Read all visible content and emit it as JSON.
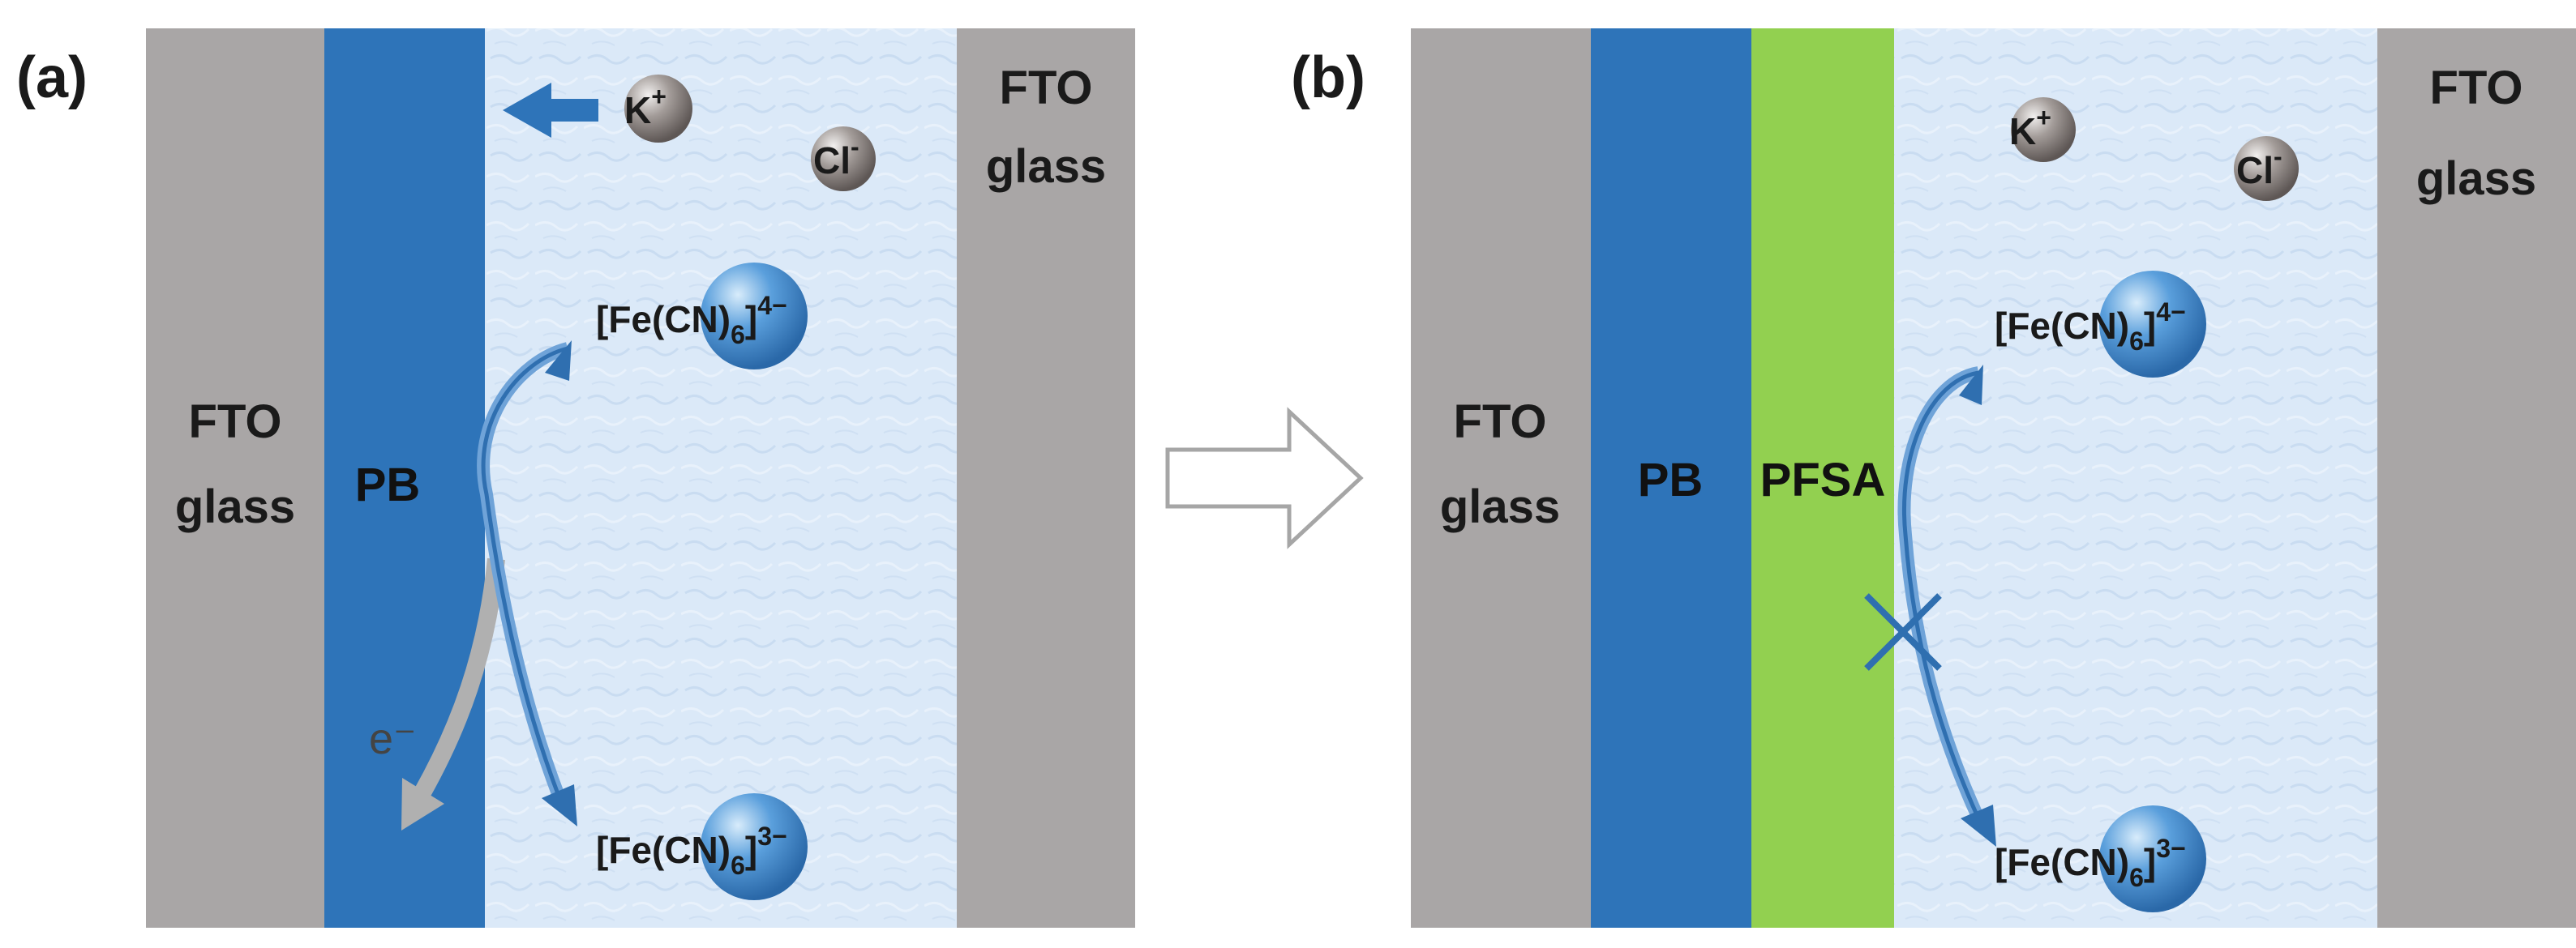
{
  "colors": {
    "fto": "#a9a6a6",
    "pb": "#2e74b9",
    "pfsa": "#92d050",
    "electrolyte": "#dbe9f8",
    "arrow": "#3a78b8",
    "electron_arrow": "#b0b0b0",
    "ion_sphere": "#8a8380",
    "complex_sphere": "#4a90d4"
  },
  "panel_a": {
    "label": "(a)",
    "fto_left": [
      "FTO",
      "glass"
    ],
    "pb": "PB",
    "fto_right": [
      "FTO",
      "glass"
    ],
    "k_ion": {
      "base": "K",
      "sup": "+"
    },
    "cl_ion": {
      "base": "Cl",
      "sup": "-"
    },
    "complex_top": {
      "pre": "[Fe(",
      "ligand": "CN)",
      "sub": "6",
      "close": "]",
      "sup": "4−"
    },
    "complex_bottom": {
      "pre": "[Fe(",
      "ligand": "CN)",
      "sub": "6",
      "close": "]",
      "sup": "3−"
    },
    "electron": "e⁻"
  },
  "panel_b": {
    "label": "(b)",
    "fto_left": [
      "FTO",
      "glass"
    ],
    "pb": "PB",
    "pfsa": "PFSA",
    "fto_right": [
      "FTO",
      "glass"
    ],
    "k_ion": {
      "base": "K",
      "sup": "+"
    },
    "cl_ion": {
      "base": "Cl",
      "sup": "-"
    },
    "complex_top": {
      "pre": "[Fe(",
      "ligand": "CN)",
      "sub": "6",
      "close": "]",
      "sup": "4−"
    },
    "complex_bottom": {
      "pre": "[Fe(",
      "ligand": "CN)",
      "sub": "6",
      "close": "]",
      "sup": "3−"
    }
  }
}
